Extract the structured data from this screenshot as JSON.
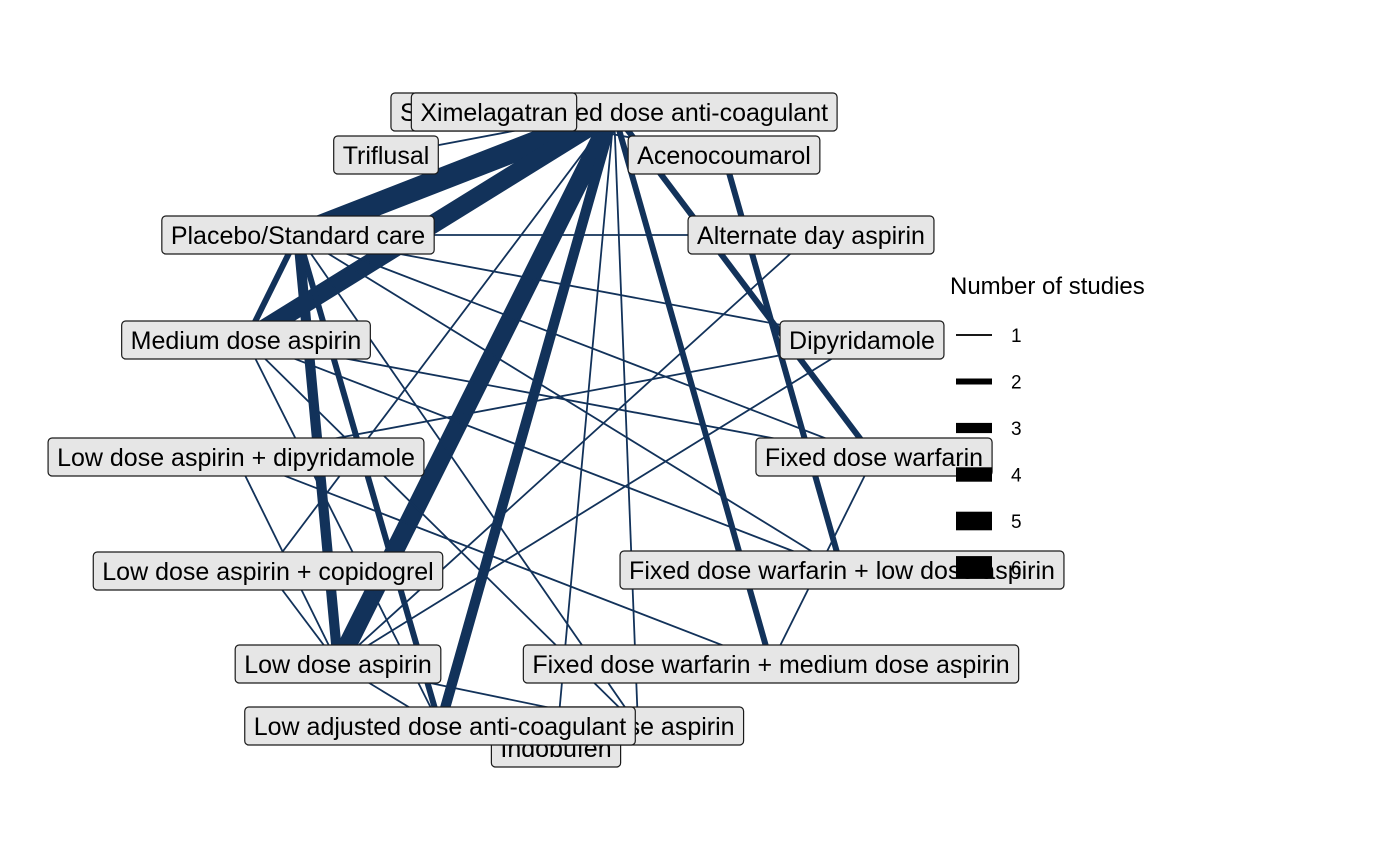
{
  "colors": {
    "edge": "#12325a",
    "node_fill": "#e6e6e6",
    "node_border": "#1a1a1a",
    "legend_key": "#000000"
  },
  "nodes": [
    {
      "id": "standard_adj",
      "label": "Standard adjusted dose anti-coagulant"
    },
    {
      "id": "triflusal",
      "label": "Triflusal"
    },
    {
      "id": "placebo",
      "label": "Placebo/Standard care"
    },
    {
      "id": "medium_aspirin",
      "label": "Medium dose aspirin"
    },
    {
      "id": "low_asp_dipy",
      "label": "Low dose aspirin + dipyridamole"
    },
    {
      "id": "low_asp_clop",
      "label": "Low dose aspirin + copidogrel"
    },
    {
      "id": "low_aspirin",
      "label": "Low dose aspirin"
    },
    {
      "id": "indobufen",
      "label": "Indobufen"
    },
    {
      "id": "high_aspirin",
      "label": "High dose aspirin"
    },
    {
      "id": "fw_medium",
      "label": "Fixed dose warfarin + medium dose aspirin"
    },
    {
      "id": "fw_low",
      "label": "Fixed dose warfarin + low dose aspirin"
    },
    {
      "id": "fixed_warfarin",
      "label": "Fixed dose warfarin"
    },
    {
      "id": "dipyridamole",
      "label": "Dipyridamole"
    },
    {
      "id": "alternate_aspirin",
      "label": "Alternate day aspirin"
    },
    {
      "id": "acenocoumarol",
      "label": "Acenocoumarol"
    },
    {
      "id": "low_adj",
      "label": "Low adjusted dose anti-coagulant"
    },
    {
      "id": "ximelagatran",
      "label": "Ximelagatran"
    }
  ],
  "edges": [
    {
      "from": "standard_adj",
      "to": "placebo",
      "studies": 6
    },
    {
      "from": "standard_adj",
      "to": "medium_aspirin",
      "studies": 5
    },
    {
      "from": "standard_adj",
      "to": "low_aspirin",
      "studies": 5
    },
    {
      "from": "standard_adj",
      "to": "low_adj",
      "studies": 3
    },
    {
      "from": "standard_adj",
      "to": "fw_medium",
      "studies": 2
    },
    {
      "from": "standard_adj",
      "to": "triflusal",
      "studies": 1
    },
    {
      "from": "standard_adj",
      "to": "ximelagatran",
      "studies": 2
    },
    {
      "from": "standard_adj",
      "to": "indobufen",
      "studies": 1
    },
    {
      "from": "standard_adj",
      "to": "low_asp_clop",
      "studies": 1
    },
    {
      "from": "standard_adj",
      "to": "fixed_warfarin",
      "studies": 2
    },
    {
      "from": "standard_adj",
      "to": "high_aspirin",
      "studies": 1
    },
    {
      "from": "placebo",
      "to": "alternate_aspirin",
      "studies": 1
    },
    {
      "from": "placebo",
      "to": "low_aspirin",
      "studies": 3
    },
    {
      "from": "placebo",
      "to": "medium_aspirin",
      "studies": 2
    },
    {
      "from": "placebo",
      "to": "dipyridamole",
      "studies": 1
    },
    {
      "from": "placebo",
      "to": "low_adj",
      "studies": 2
    },
    {
      "from": "placebo",
      "to": "fixed_warfarin",
      "studies": 1
    },
    {
      "from": "placebo",
      "to": "fw_low",
      "studies": 1
    },
    {
      "from": "placebo",
      "to": "high_aspirin",
      "studies": 1
    },
    {
      "from": "medium_aspirin",
      "to": "low_adj",
      "studies": 1
    },
    {
      "from": "medium_aspirin",
      "to": "fw_low",
      "studies": 1
    },
    {
      "from": "medium_aspirin",
      "to": "fixed_warfarin",
      "studies": 1
    },
    {
      "from": "medium_aspirin",
      "to": "high_aspirin",
      "studies": 1
    },
    {
      "from": "low_asp_dipy",
      "to": "low_aspirin",
      "studies": 1
    },
    {
      "from": "low_asp_dipy",
      "to": "dipyridamole",
      "studies": 1
    },
    {
      "from": "low_asp_dipy",
      "to": "fw_medium",
      "studies": 1
    },
    {
      "from": "low_asp_clop",
      "to": "low_aspirin",
      "studies": 1
    },
    {
      "from": "low_aspirin",
      "to": "alternate_aspirin",
      "studies": 1
    },
    {
      "from": "low_aspirin",
      "to": "low_adj",
      "studies": 1
    },
    {
      "from": "low_aspirin",
      "to": "dipyridamole",
      "studies": 1
    },
    {
      "from": "low_aspirin",
      "to": "high_aspirin",
      "studies": 1
    },
    {
      "from": "acenocoumarol",
      "to": "fw_low",
      "studies": 2
    },
    {
      "from": "fixed_warfarin",
      "to": "fw_medium",
      "studies": 1
    },
    {
      "from": "ximelagatran",
      "to": "acenocoumarol",
      "studies": 1
    }
  ],
  "legend": {
    "title": "Number of studies",
    "items": [
      {
        "value": 1,
        "label": "1"
      },
      {
        "value": 2,
        "label": "2"
      },
      {
        "value": 3,
        "label": "3"
      },
      {
        "value": 4,
        "label": "4"
      },
      {
        "value": 5,
        "label": "5"
      },
      {
        "value": 6,
        "label": "6"
      }
    ]
  }
}
